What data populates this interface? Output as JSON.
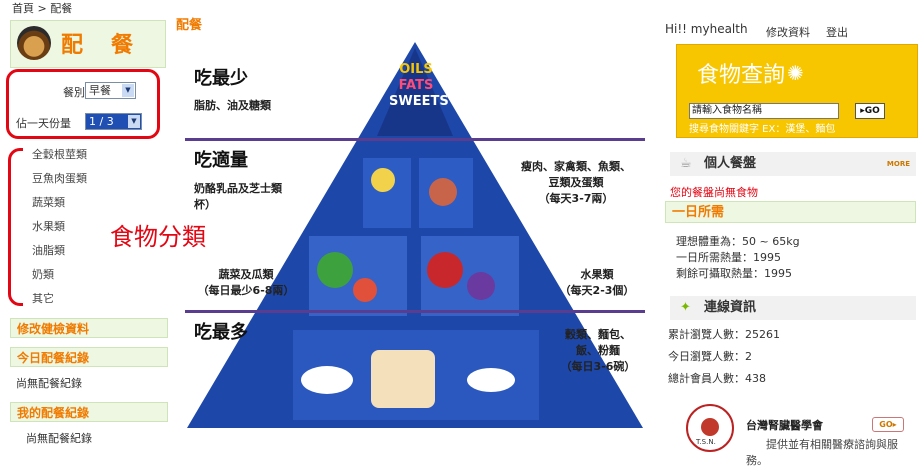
{
  "breadcrumb": "首頁 > 配餐",
  "logo": {
    "text": "配餐"
  },
  "controls": {
    "meal_label": "餐別",
    "meal_value": "早餐",
    "portion_label": "佔一天份量",
    "portion_value": "1 / 3"
  },
  "categories": [
    "全穀根莖類",
    "豆魚肉蛋類",
    "蔬菜類",
    "水果類",
    "油脂類",
    "奶類",
    "其它"
  ],
  "categories_annotation": "食物分類",
  "sections": {
    "edit_health": "修改健檢資料",
    "today_log": "今日配餐紀錄",
    "today_log_empty": "尚無配餐紀錄",
    "my_log": "我的配餐紀錄",
    "my_log_empty": "尚無配餐紀錄"
  },
  "center": {
    "title": "配餐",
    "tiers": {
      "top": {
        "title": "吃最少",
        "desc": "脂肪、油及糖類",
        "apex": [
          "OILS",
          "FATS",
          "SWEETS"
        ]
      },
      "mid": {
        "title": "吃適量",
        "left": "奶酪乳品及芝士類\n杯）",
        "right": "瘦肉、家禽類、魚類、\n豆類及蛋類\n（每天3-7兩）"
      },
      "veg": {
        "left": "蔬菜及瓜類\n（每日最少6-8兩）",
        "right": "水果類\n（每天2-3個）"
      },
      "base": {
        "title": "吃最多",
        "right": "穀類、麵包、\n飯、粉麵\n（每日3-6碗）"
      }
    }
  },
  "header": {
    "greeting": "Hi!! myhealth",
    "edit_profile": "修改資料",
    "logout": "登出"
  },
  "food_search": {
    "title": "食物查詢",
    "placeholder": "請輸入食物名稱",
    "go": "GO",
    "hint": "搜尋食物關鍵字 EX：漢堡、麵包"
  },
  "personal": {
    "title": "個人餐盤",
    "more": "MORE",
    "empty": "您的餐盤尚無食物",
    "daily_title": "一日所需",
    "ideal_weight": "理想體重為：50 ~ 65kg",
    "daily_calories": "一日所需熱量：1995",
    "remaining_calories": "剩餘可攝取熱量：1995"
  },
  "stats": {
    "title": "連線資訊",
    "total_views": "累計瀏覽人數：25261",
    "today_views": "今日瀏覽人數：2",
    "members": "總計會員人數：438"
  },
  "sponsor": {
    "name": "台灣腎臟醫學會",
    "go": "GO",
    "desc": "提供並有相關醫療諮詢與服務。",
    "seal_text": "T.S.N."
  },
  "colors": {
    "accent_orange": "#f07b00",
    "annotation_red": "#e30613",
    "search_yellow": "#f7c600",
    "pyramid_blue": "#1d47a8"
  }
}
